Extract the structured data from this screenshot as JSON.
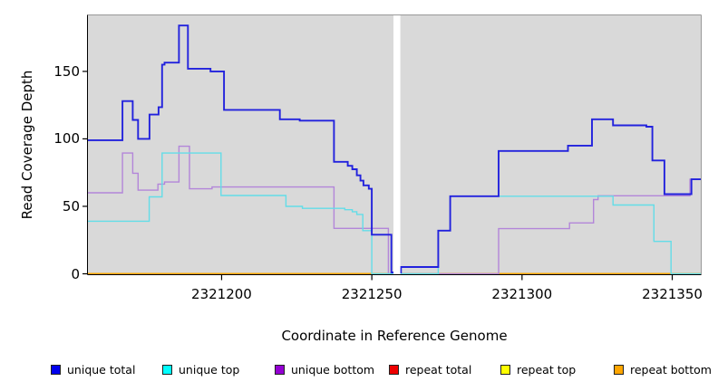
{
  "chart_data": {
    "type": "line",
    "step": true,
    "title": "",
    "xlabel": "Coordinate in Reference Genome",
    "ylabel": "Read Coverage Depth",
    "xlim": [
      2321155.5,
      2321359.5
    ],
    "ylim": [
      0,
      191.5
    ],
    "x_ticks": [
      2321200,
      2321250,
      2321300,
      2321350
    ],
    "x_tick_labels": [
      "2321200",
      "2321250",
      "2321300",
      "2321350"
    ],
    "y_ticks": [
      0,
      50,
      100,
      150
    ],
    "y_tick_labels": [
      "0",
      "50",
      "100",
      "150"
    ],
    "plot_background": "#d9d9d9",
    "grid": false,
    "legend_position": "bottom",
    "gap_region": {
      "from": 2321257.2,
      "to": 2321259.5,
      "color": "#ffffff"
    },
    "series": [
      {
        "name": "unique total",
        "line_color": "#2222dd",
        "legend_color": "#0000ee",
        "line_width": 1.9,
        "points": [
          [
            2321155.5,
            99
          ],
          [
            2321167,
            128
          ],
          [
            2321170.4,
            114
          ],
          [
            2321172.2,
            100
          ],
          [
            2321176,
            118
          ],
          [
            2321179,
            123.5
          ],
          [
            2321180.2,
            155
          ],
          [
            2321181,
            156.5
          ],
          [
            2321185.8,
            184
          ],
          [
            2321188.8,
            152
          ],
          [
            2321196.3,
            150
          ],
          [
            2321200.8,
            121.5
          ],
          [
            2321219.4,
            114.5
          ],
          [
            2321226,
            113.5
          ],
          [
            2321237.4,
            83
          ],
          [
            2321242,
            80
          ],
          [
            2321243.5,
            77.5
          ],
          [
            2321245,
            73
          ],
          [
            2321246.2,
            69
          ],
          [
            2321247.2,
            65.5
          ],
          [
            2321249,
            63
          ],
          [
            2321250,
            29
          ],
          [
            2321256.5,
            1
          ],
          [
            2321259.7,
            5
          ],
          [
            2321272.1,
            32
          ],
          [
            2321276.1,
            57.5
          ],
          [
            2321292.2,
            91
          ],
          [
            2321315.3,
            95
          ],
          [
            2321323.3,
            114.5
          ],
          [
            2321330.3,
            110
          ],
          [
            2321341.4,
            109
          ],
          [
            2321343.4,
            84
          ],
          [
            2321347.4,
            59
          ],
          [
            2321356.4,
            70
          ]
        ]
      },
      {
        "name": "unique top",
        "line_color": "#63dde8",
        "legend_color": "#00ffff",
        "line_width": 1.4,
        "points": [
          [
            2321155.5,
            39
          ],
          [
            2321175.9,
            57
          ],
          [
            2321180.2,
            89.5
          ],
          [
            2321199.8,
            58
          ],
          [
            2321221.4,
            50
          ],
          [
            2321226.9,
            48.5
          ],
          [
            2321241,
            47.5
          ],
          [
            2321243.5,
            46
          ],
          [
            2321245,
            44
          ],
          [
            2321247,
            32
          ],
          [
            2321250,
            0
          ],
          [
            2321272.1,
            32
          ],
          [
            2321276.1,
            57.5
          ],
          [
            2321330.3,
            51
          ],
          [
            2321343.9,
            24
          ],
          [
            2321349.6,
            0
          ]
        ]
      },
      {
        "name": "unique bottom",
        "line_color": "#b386d9",
        "legend_color": "#9400d3",
        "line_width": 1.4,
        "points": [
          [
            2321155.5,
            60
          ],
          [
            2321167,
            89.5
          ],
          [
            2321170.4,
            74.5
          ],
          [
            2321172.2,
            62
          ],
          [
            2321178.8,
            66.5
          ],
          [
            2321181,
            68
          ],
          [
            2321185.8,
            94.5
          ],
          [
            2321189.3,
            63
          ],
          [
            2321196.8,
            64.3
          ],
          [
            2321237.4,
            33.7
          ],
          [
            2321255.5,
            0
          ],
          [
            2321292.2,
            33.5
          ],
          [
            2321315.8,
            37.7
          ],
          [
            2321323.8,
            55
          ],
          [
            2321325.3,
            57.8
          ],
          [
            2321355.9,
            70
          ]
        ]
      },
      {
        "name": "repeat total",
        "line_color": "#dd3344",
        "legend_color": "#ee0000",
        "line_width": 1.4,
        "points": [
          [
            2321155.5,
            0
          ]
        ]
      },
      {
        "name": "repeat top",
        "line_color": "#ffff00",
        "legend_color": "#ffff00",
        "line_width": 1.4,
        "points": [
          [
            2321155.5,
            0
          ]
        ]
      },
      {
        "name": "repeat bottom",
        "line_color": "#ffa500",
        "legend_color": "#ffa500",
        "line_width": 1.8,
        "points": [
          [
            2321155.5,
            0
          ]
        ]
      }
    ],
    "draw_order": [
      3,
      4,
      5,
      2,
      1,
      0
    ]
  },
  "legend": {
    "items": [
      {
        "label": "unique total",
        "color": "#0000ee"
      },
      {
        "label": "unique top",
        "color": "#00ffff"
      },
      {
        "label": "unique bottom",
        "color": "#9400d3"
      },
      {
        "label": "repeat total",
        "color": "#ee0000"
      },
      {
        "label": "repeat top",
        "color": "#ffff00"
      },
      {
        "label": "repeat bottom",
        "color": "#ffa500"
      }
    ]
  }
}
